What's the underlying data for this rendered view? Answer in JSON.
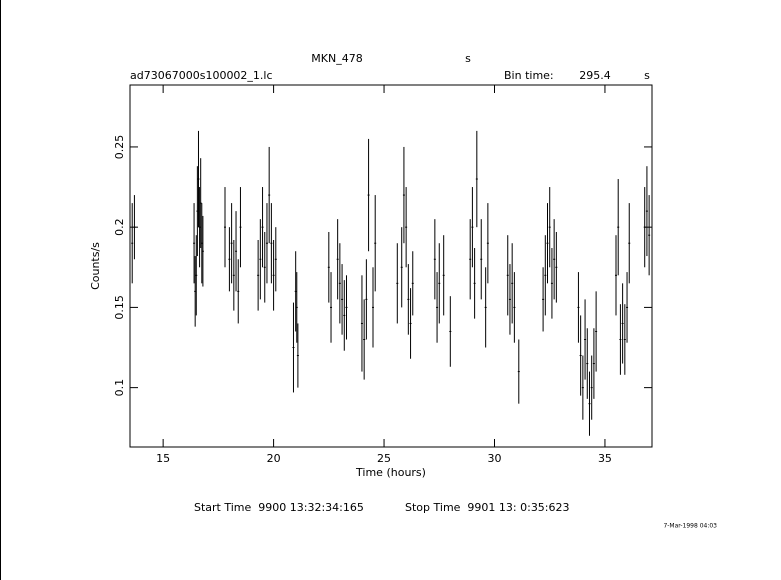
{
  "chart_data": {
    "type": "scatter",
    "title": "MKN_478",
    "title_unit": "s",
    "subtitle": "ad73067000s100002_1.lc",
    "bin_time_label": "Bin time:",
    "bin_time": 295.4,
    "bin_time_unit": "s",
    "x_label": "Time (hours)",
    "y_label": "Counts/s",
    "start_time": "Start Time  9900 13:32:34:165",
    "stop_time": "Stop Time  9901 13: 0:35:623",
    "date_stamp": "7-Mar-1998 04:03",
    "color": "#000000",
    "xlim": [
      13.5,
      37.13
    ],
    "xticks": [
      15,
      20,
      25,
      30,
      35
    ],
    "ylim": [
      0.063,
      0.2886
    ],
    "yticks": [
      0.1,
      0.15,
      0.2,
      0.25
    ],
    "x": [
      13.6,
      13.7,
      16.4,
      16.45,
      16.5,
      16.55,
      16.6,
      16.65,
      16.7,
      16.75,
      16.8,
      17.8,
      18.0,
      18.1,
      18.2,
      18.3,
      18.4,
      18.5,
      19.3,
      19.4,
      19.5,
      19.6,
      19.7,
      19.8,
      19.9,
      20.0,
      20.1,
      20.9,
      21.0,
      21.05,
      21.1,
      22.5,
      22.6,
      22.9,
      23.0,
      23.1,
      23.2,
      23.3,
      24.0,
      24.1,
      24.2,
      24.3,
      24.5,
      24.6,
      25.6,
      25.8,
      25.9,
      26.0,
      26.1,
      26.2,
      26.3,
      27.3,
      27.4,
      27.5,
      27.7,
      28.0,
      28.9,
      29.0,
      29.1,
      29.2,
      29.4,
      29.6,
      29.7,
      30.6,
      30.7,
      30.8,
      30.9,
      31.1,
      32.2,
      32.3,
      32.4,
      32.5,
      32.6,
      32.7,
      32.8,
      33.8,
      33.9,
      34.0,
      34.1,
      34.2,
      34.3,
      34.4,
      34.5,
      34.6,
      35.5,
      35.6,
      35.7,
      35.8,
      35.9,
      36.0,
      36.1,
      36.8,
      36.9,
      37.0
    ],
    "values": [
      0.19,
      0.2,
      0.19,
      0.16,
      0.17,
      0.21,
      0.23,
      0.2,
      0.215,
      0.19,
      0.185,
      0.2,
      0.18,
      0.19,
      0.17,
      0.185,
      0.16,
      0.2,
      0.17,
      0.18,
      0.2,
      0.175,
      0.19,
      0.22,
      0.19,
      0.17,
      0.18,
      0.125,
      0.16,
      0.15,
      0.12,
      0.175,
      0.15,
      0.18,
      0.165,
      0.155,
      0.145,
      0.15,
      0.14,
      0.13,
      0.155,
      0.22,
      0.15,
      0.19,
      0.165,
      0.175,
      0.22,
      0.2,
      0.155,
      0.14,
      0.165,
      0.18,
      0.15,
      0.165,
      0.17,
      0.135,
      0.18,
      0.2,
      0.165,
      0.23,
      0.18,
      0.15,
      0.19,
      0.17,
      0.155,
      0.165,
      0.15,
      0.11,
      0.155,
      0.17,
      0.19,
      0.2,
      0.165,
      0.18,
      0.175,
      0.15,
      0.12,
      0.1,
      0.13,
      0.115,
      0.09,
      0.1,
      0.115,
      0.135,
      0.17,
      0.2,
      0.13,
      0.14,
      0.13,
      0.15,
      0.19,
      0.2,
      0.21,
      0.195
    ],
    "errors": [
      0.025,
      0.02,
      0.025,
      0.022,
      0.025,
      0.028,
      0.03,
      0.025,
      0.028,
      0.025,
      0.022,
      0.025,
      0.02,
      0.025,
      0.022,
      0.025,
      0.02,
      0.025,
      0.022,
      0.025,
      0.025,
      0.022,
      0.025,
      0.03,
      0.025,
      0.022,
      0.02,
      0.028,
      0.025,
      0.022,
      0.02,
      0.022,
      0.022,
      0.025,
      0.025,
      0.022,
      0.022,
      0.02,
      0.03,
      0.025,
      0.025,
      0.035,
      0.025,
      0.03,
      0.025,
      0.025,
      0.03,
      0.025,
      0.022,
      0.022,
      0.02,
      0.025,
      0.022,
      0.025,
      0.025,
      0.022,
      0.025,
      0.025,
      0.022,
      0.03,
      0.025,
      0.025,
      0.025,
      0.025,
      0.022,
      0.025,
      0.022,
      0.02,
      0.02,
      0.025,
      0.025,
      0.025,
      0.022,
      0.025,
      0.022,
      0.022,
      0.025,
      0.02,
      0.025,
      0.022,
      0.02,
      0.02,
      0.022,
      0.025,
      0.025,
      0.03,
      0.022,
      0.025,
      0.022,
      0.022,
      0.025,
      0.025,
      0.028,
      0.025
    ]
  }
}
